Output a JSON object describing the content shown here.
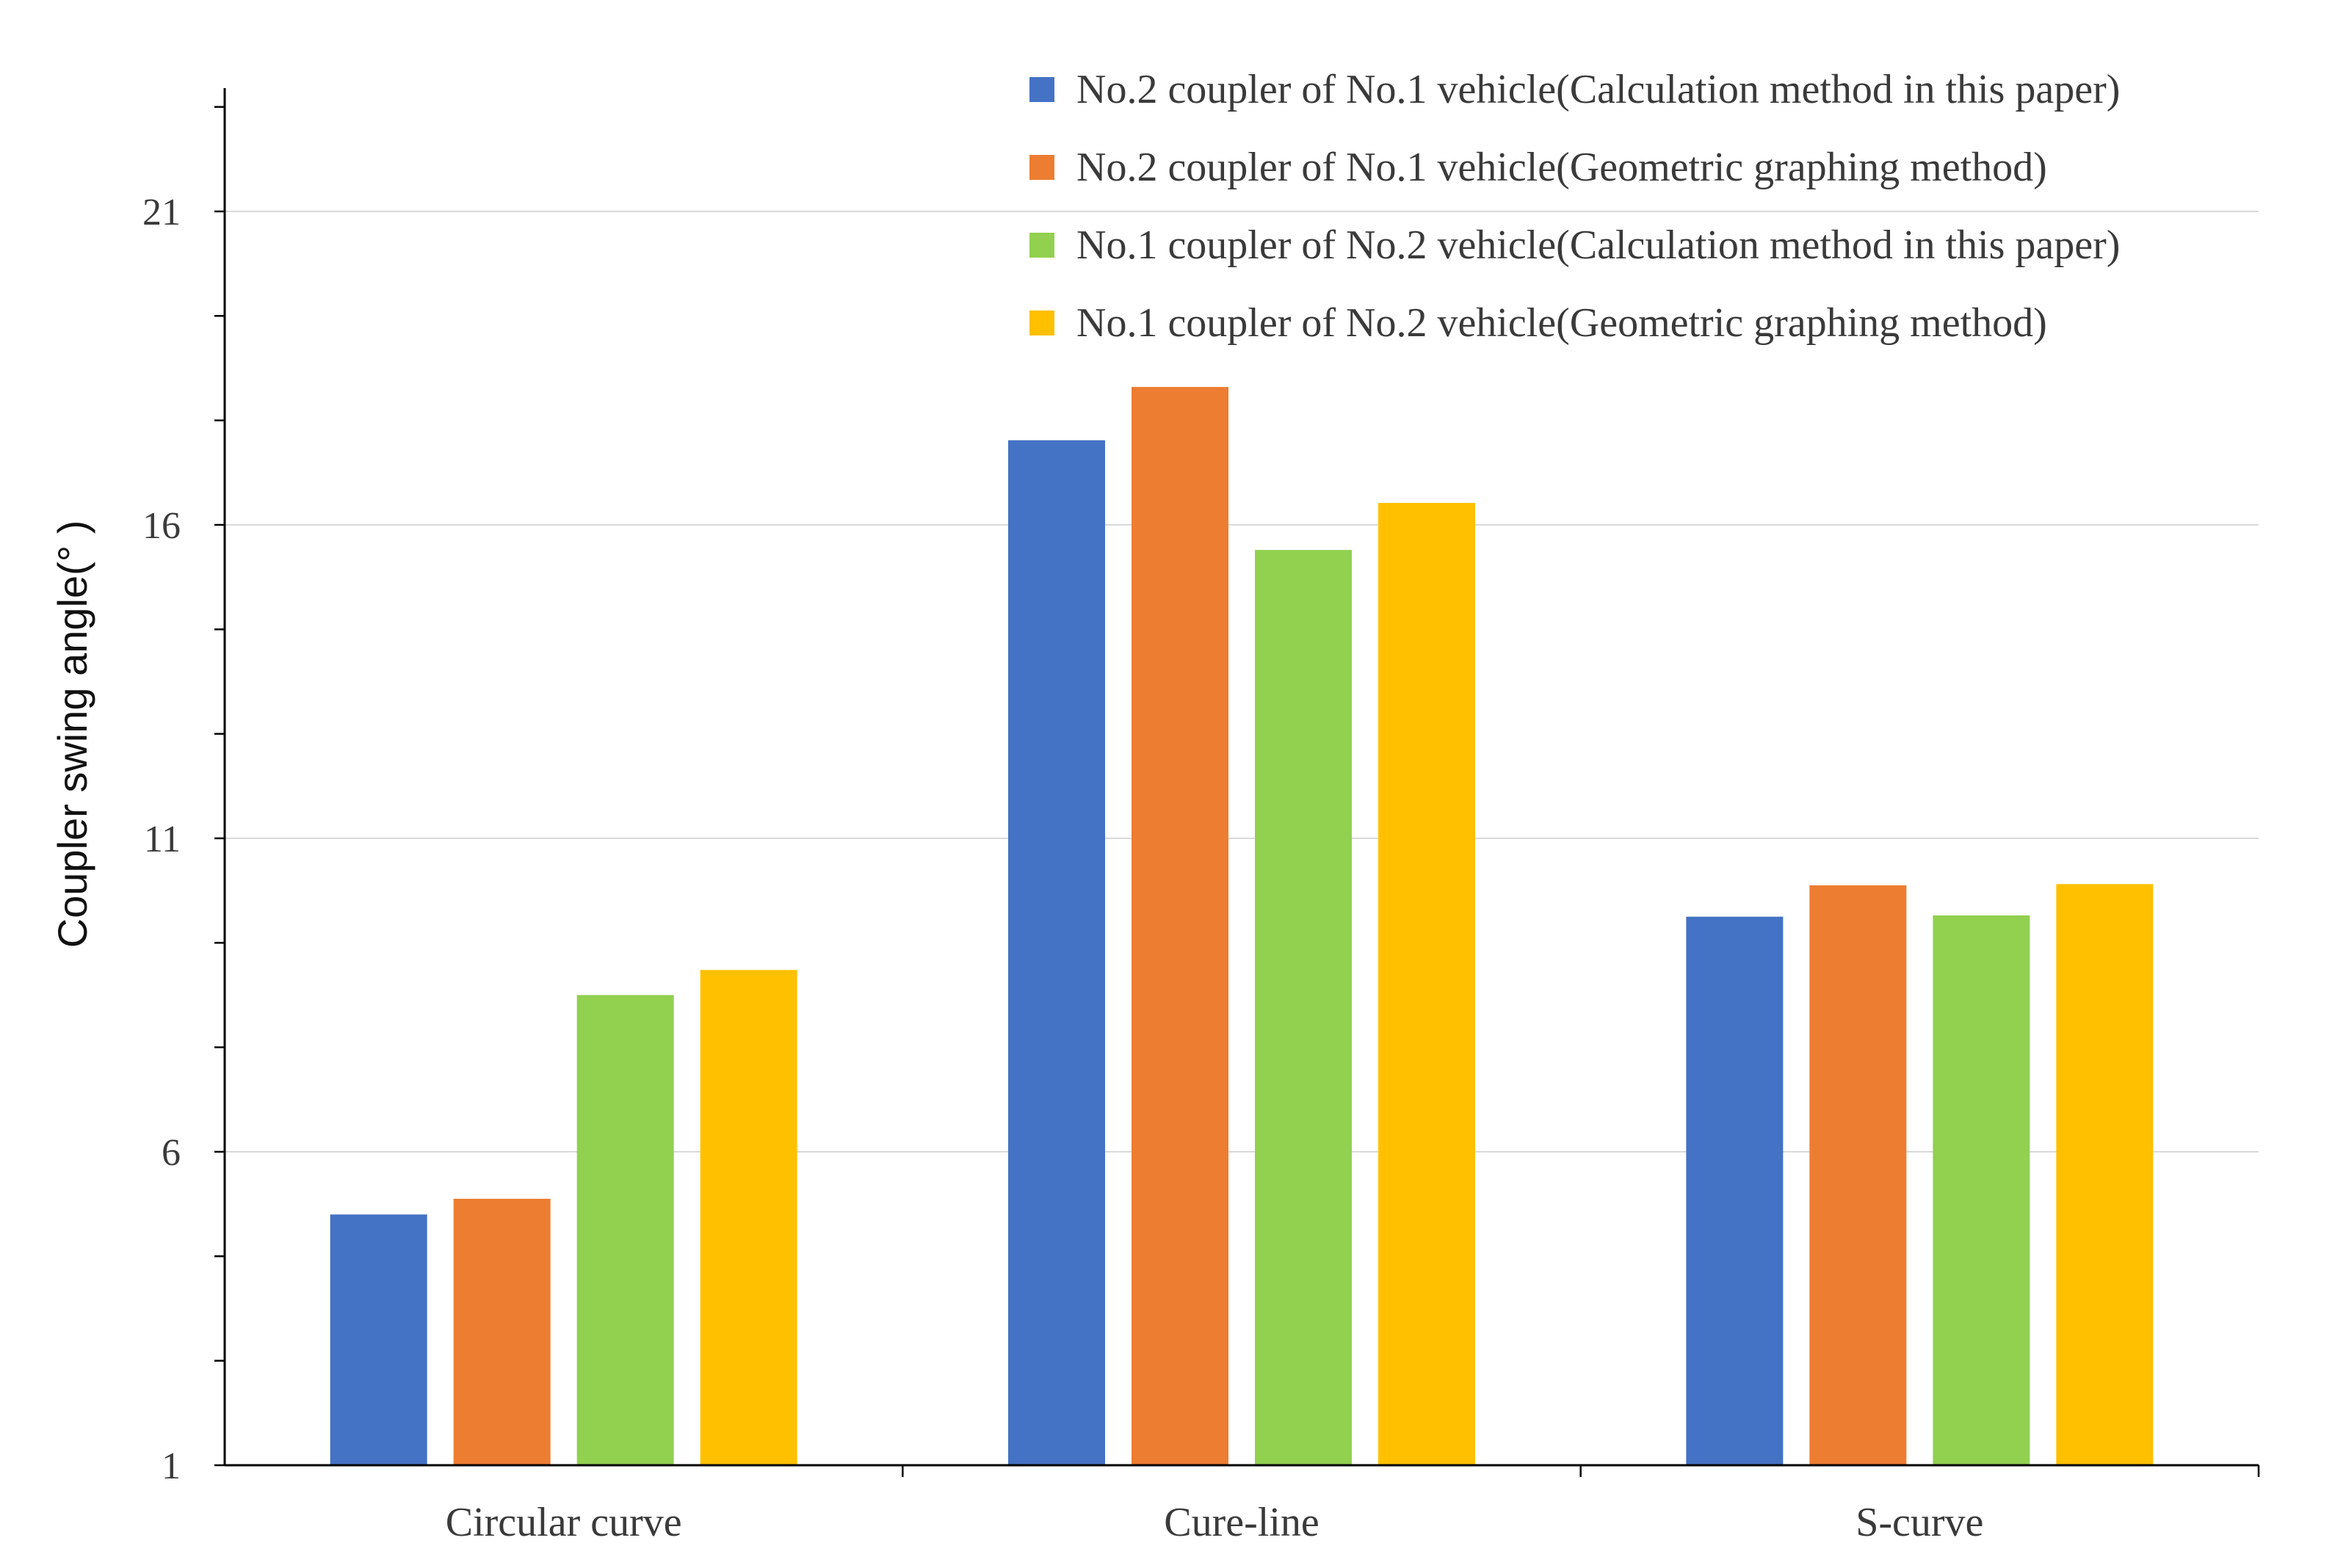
{
  "chart_data": {
    "type": "bar",
    "title": "",
    "xlabel": "",
    "ylabel": "Coupler swing angle(°  )",
    "ylim": [
      1,
      23
    ],
    "yticks": [
      1,
      6,
      11,
      16,
      21
    ],
    "grid": true,
    "legend_position": "top-right",
    "categories": [
      "Circular curve",
      "Cure-line",
      "S-curve"
    ],
    "series": [
      {
        "name": "No.2 coupler of No.1 vehicle(Calculation method in this paper)",
        "color": "#4472C4",
        "values": [
          5.0,
          17.35,
          9.75
        ]
      },
      {
        "name": "No.2 coupler of No.1 vehicle(Geometric graphing method)",
        "color": "#ED7D31",
        "values": [
          5.25,
          18.2,
          10.25
        ]
      },
      {
        "name": "No.1 coupler of No.2 vehicle(Calculation method in this paper)",
        "color": "#92D050",
        "values": [
          8.5,
          15.6,
          9.77
        ]
      },
      {
        "name": "No.1 coupler of No.2 vehicle(Geometric graphing method)",
        "color": "#FFC000",
        "values": [
          8.9,
          16.35,
          10.27
        ]
      }
    ]
  }
}
